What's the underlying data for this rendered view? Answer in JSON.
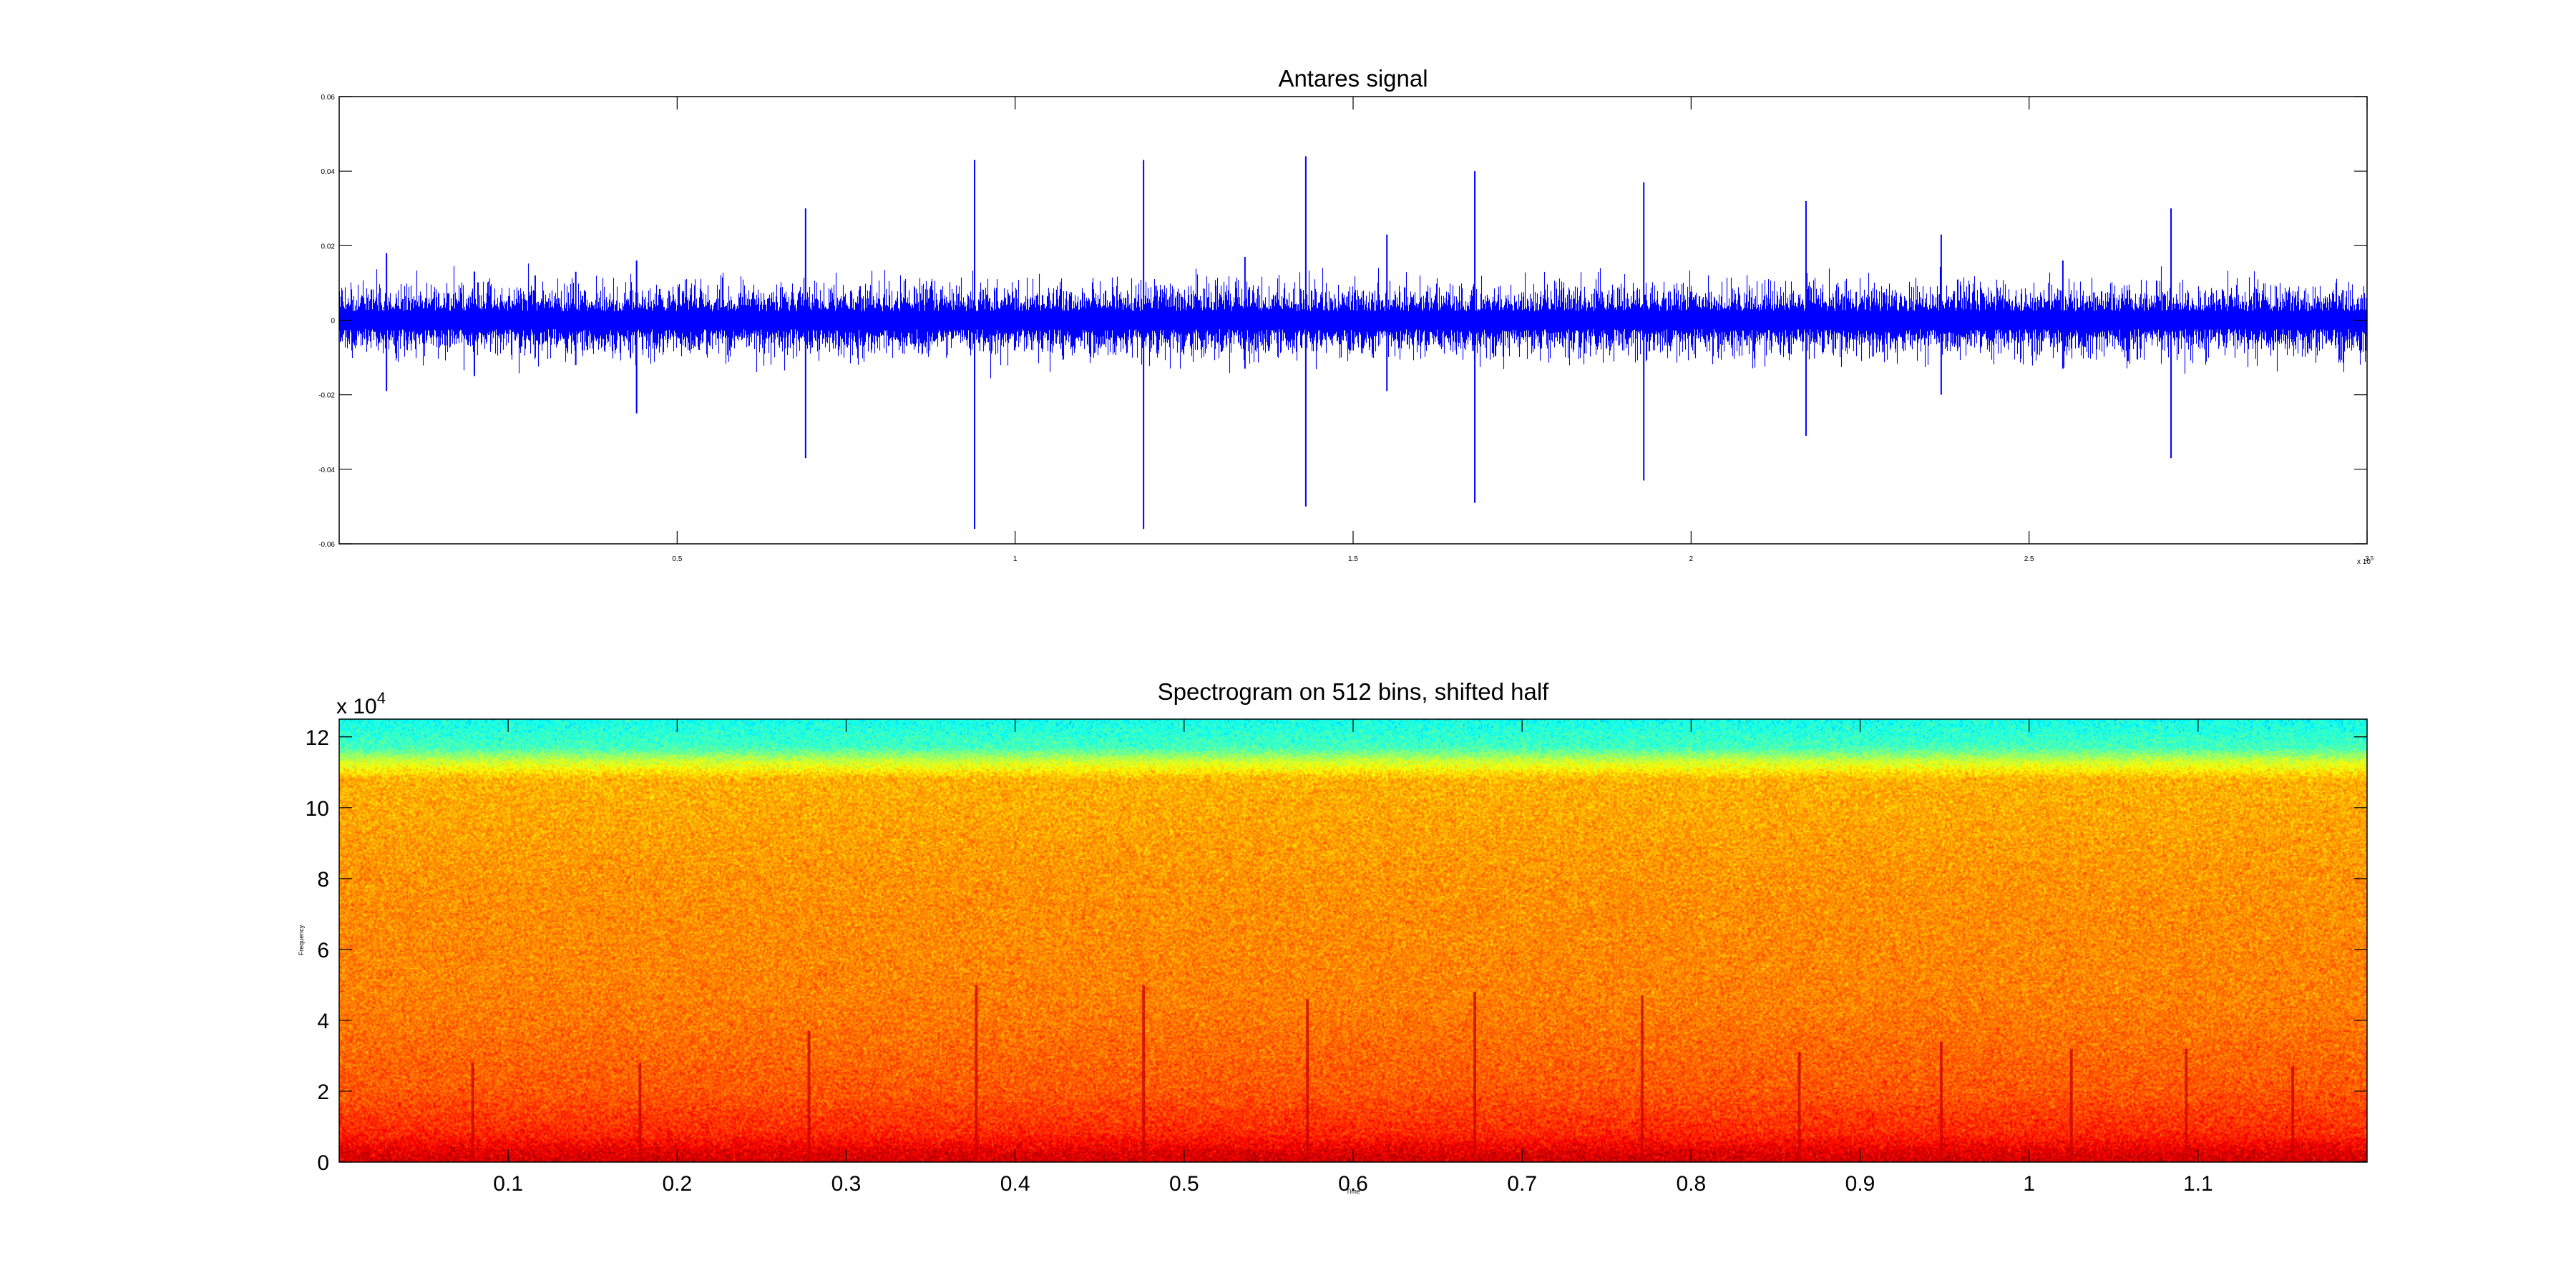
{
  "chart_data": [
    {
      "type": "line",
      "title": "Antares signal",
      "xlabel": "",
      "ylabel": "",
      "xlim": [
        0,
        300000
      ],
      "ylim": [
        -0.06,
        0.06
      ],
      "x_exponent_label": "x 10",
      "x_exponent_power": "5",
      "x_ticks": [
        {
          "value": 50000,
          "label": "0.5"
        },
        {
          "value": 100000,
          "label": "1"
        },
        {
          "value": 150000,
          "label": "1.5"
        },
        {
          "value": 200000,
          "label": "2"
        },
        {
          "value": 250000,
          "label": "2.5"
        },
        {
          "value": 300000,
          "label": "3"
        }
      ],
      "y_ticks": [
        {
          "value": 0.06,
          "label": "0.06"
        },
        {
          "value": 0.04,
          "label": "0.04"
        },
        {
          "value": 0.02,
          "label": "0.02"
        },
        {
          "value": 0,
          "label": "0"
        },
        {
          "value": -0.02,
          "label": "-0.02"
        },
        {
          "value": -0.04,
          "label": "-0.04"
        },
        {
          "value": -0.06,
          "label": "-0.06"
        }
      ],
      "grid": false,
      "series": [
        {
          "color": "#0000ff",
          "noise_amplitude": 0.004,
          "spikes": [
            {
              "x": 7000,
              "max": 0.018,
              "min": -0.019
            },
            {
              "x": 20000,
              "max": 0.013,
              "min": -0.015
            },
            {
              "x": 29000,
              "max": 0.012,
              "min": -0.01
            },
            {
              "x": 35000,
              "max": 0.013,
              "min": -0.012
            },
            {
              "x": 44000,
              "max": 0.016,
              "min": -0.025
            },
            {
              "x": 69000,
              "max": 0.03,
              "min": -0.037
            },
            {
              "x": 94000,
              "max": 0.043,
              "min": -0.056
            },
            {
              "x": 119000,
              "max": 0.043,
              "min": -0.056
            },
            {
              "x": 134000,
              "max": 0.017,
              "min": -0.013
            },
            {
              "x": 143000,
              "max": 0.044,
              "min": -0.05
            },
            {
              "x": 155000,
              "max": 0.023,
              "min": -0.019
            },
            {
              "x": 168000,
              "max": 0.04,
              "min": -0.049
            },
            {
              "x": 193000,
              "max": 0.037,
              "min": -0.043
            },
            {
              "x": 217000,
              "max": 0.032,
              "min": -0.031
            },
            {
              "x": 237000,
              "max": 0.023,
              "min": -0.02
            },
            {
              "x": 255000,
              "max": 0.016,
              "min": -0.013
            },
            {
              "x": 271000,
              "max": 0.03,
              "min": -0.037
            }
          ]
        }
      ]
    },
    {
      "type": "heatmap",
      "title": "Spectrogram on 512 bins, shifted half",
      "xlabel": "Time",
      "ylabel": "Frequency",
      "xlim": [
        0,
        1.2
      ],
      "ylim": [
        0,
        125000
      ],
      "y_exponent_label": "x 10",
      "y_exponent_power": "4",
      "x_ticks": [
        {
          "value": 0.1,
          "label": "0.1"
        },
        {
          "value": 0.2,
          "label": "0.2"
        },
        {
          "value": 0.3,
          "label": "0.3"
        },
        {
          "value": 0.4,
          "label": "0.4"
        },
        {
          "value": 0.5,
          "label": "0.5"
        },
        {
          "value": 0.6,
          "label": "0.6"
        },
        {
          "value": 0.7,
          "label": "0.7"
        },
        {
          "value": 0.8,
          "label": "0.8"
        },
        {
          "value": 0.9,
          "label": "0.9"
        },
        {
          "value": 1.0,
          "label": "1"
        },
        {
          "value": 1.1,
          "label": "1.1"
        }
      ],
      "y_ticks": [
        {
          "value": 0,
          "label": "0"
        },
        {
          "value": 20000,
          "label": "2"
        },
        {
          "value": 40000,
          "label": "4"
        },
        {
          "value": 60000,
          "label": "6"
        },
        {
          "value": 80000,
          "label": "8"
        },
        {
          "value": 100000,
          "label": "10"
        },
        {
          "value": 120000,
          "label": "12"
        }
      ],
      "colormap": "jet",
      "band_levels": [
        {
          "freq": 0,
          "level": 0.92
        },
        {
          "freq": 3000,
          "level": 0.9
        },
        {
          "freq": 8000,
          "level": 0.84
        },
        {
          "freq": 20000,
          "level": 0.79
        },
        {
          "freq": 45000,
          "level": 0.75
        },
        {
          "freq": 80000,
          "level": 0.73
        },
        {
          "freq": 108000,
          "level": 0.7
        },
        {
          "freq": 113000,
          "level": 0.58
        },
        {
          "freq": 117000,
          "level": 0.44
        },
        {
          "freq": 125000,
          "level": 0.39
        }
      ],
      "clicks": [
        {
          "t": 0.079,
          "top": 28000
        },
        {
          "t": 0.178,
          "top": 28000
        },
        {
          "t": 0.278,
          "top": 37000
        },
        {
          "t": 0.377,
          "top": 50000
        },
        {
          "t": 0.476,
          "top": 50000
        },
        {
          "t": 0.573,
          "top": 46000
        },
        {
          "t": 0.672,
          "top": 48000
        },
        {
          "t": 0.771,
          "top": 47000
        },
        {
          "t": 0.864,
          "top": 31000
        },
        {
          "t": 0.948,
          "top": 34000
        },
        {
          "t": 1.025,
          "top": 32000
        },
        {
          "t": 1.093,
          "top": 32000
        },
        {
          "t": 1.156,
          "top": 27000
        }
      ]
    }
  ]
}
